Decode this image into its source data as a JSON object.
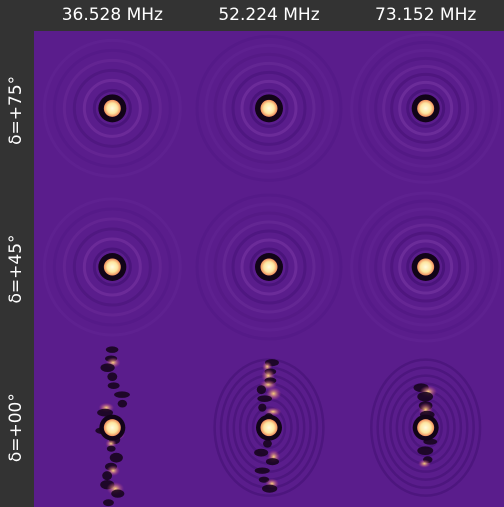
{
  "columns": [
    "36.528 MHz",
    "52.224 MHz",
    "73.152 MHz"
  ],
  "rows": [
    "δ=+75°",
    "δ=+45°",
    "δ=+00°"
  ]
}
